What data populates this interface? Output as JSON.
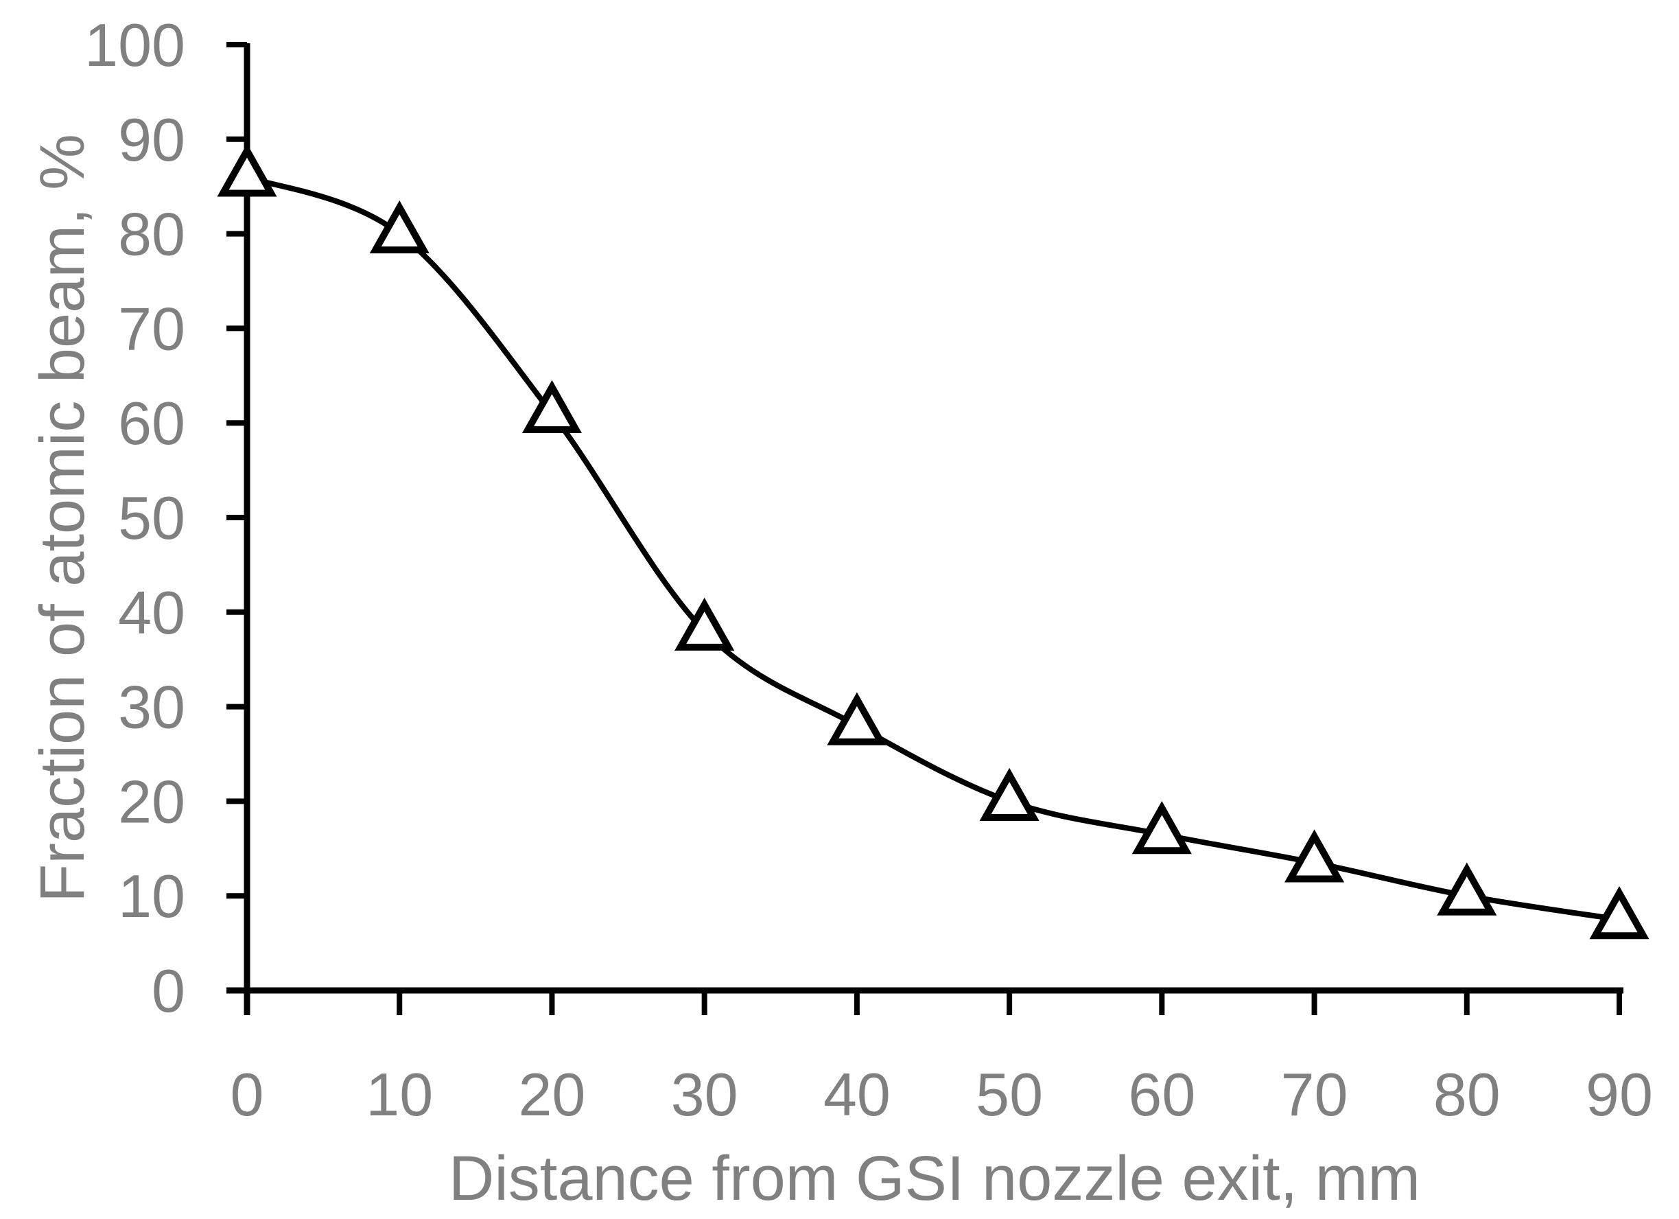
{
  "chart_data": {
    "type": "line",
    "title": "",
    "xlabel": "Distance from GSI nozzle exit, mm",
    "ylabel": "Fraction of atomic beam, %",
    "xlim": [
      0,
      90
    ],
    "ylim": [
      0,
      100
    ],
    "x_ticks": [
      0,
      10,
      20,
      30,
      40,
      50,
      60,
      70,
      80,
      90
    ],
    "y_ticks": [
      0,
      10,
      20,
      30,
      40,
      50,
      60,
      70,
      80,
      90,
      100
    ],
    "grid": false,
    "legend": "none",
    "series": [
      {
        "marker": "open-triangle",
        "line": "smoothed",
        "x": [
          0,
          10,
          20,
          30,
          40,
          50,
          60,
          70,
          80,
          90
        ],
        "y": [
          86,
          80,
          61,
          38,
          28,
          20,
          16.5,
          13.5,
          10,
          7.5
        ]
      }
    ],
    "colors": {
      "axis": "#000000",
      "series": "#000000",
      "text": "#808080"
    }
  }
}
